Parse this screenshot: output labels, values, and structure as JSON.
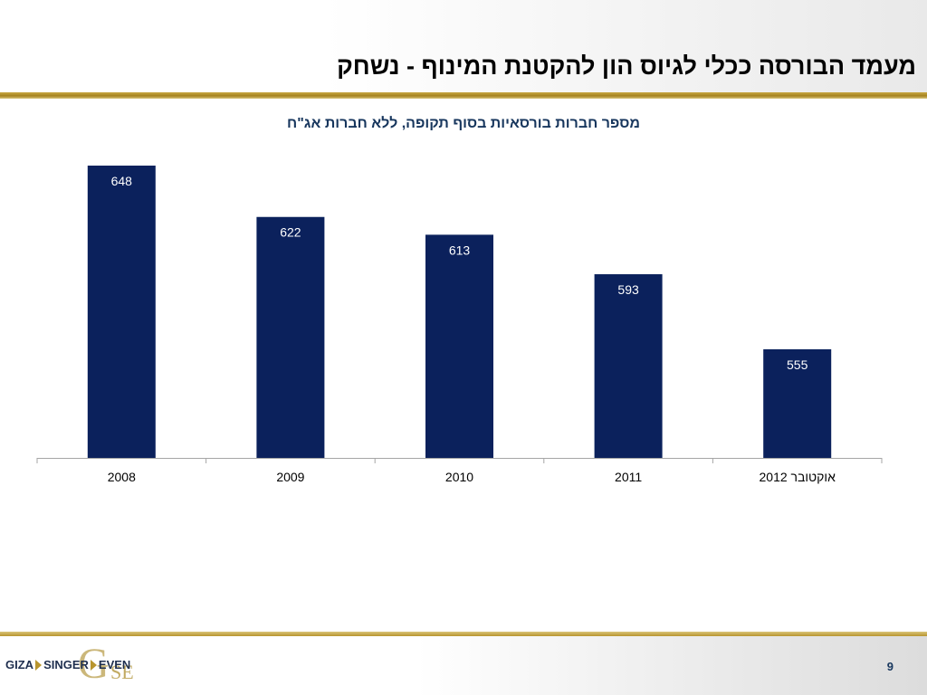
{
  "slide": {
    "title": "מעמד הבורסה ככלי לגיוס הון להקטנת המינוף - נשחק",
    "page_number": "9"
  },
  "logo": {
    "word_1": "GIZA",
    "word_2": "SINGER",
    "word_3": "EVEN",
    "monogram": "G",
    "monogram_sub": "SE"
  },
  "colors": {
    "bar": "#0b215c",
    "title_blue": "#17365d",
    "gold": "#b8952e"
  },
  "chart_data": {
    "type": "bar",
    "title": "מספר חברות בורסאיות בסוף תקופה, ללא חברות אג\"ח",
    "categories": [
      "2008",
      "2009",
      "2010",
      "2011",
      "אוקטובר 2012"
    ],
    "values": [
      648,
      622,
      613,
      593,
      555
    ],
    "data_labels": [
      "648",
      "622",
      "613",
      "593",
      "555"
    ],
    "ylim": [
      500,
      650
    ],
    "xlabel": "",
    "ylabel": "",
    "grid": false,
    "legend": "none"
  }
}
